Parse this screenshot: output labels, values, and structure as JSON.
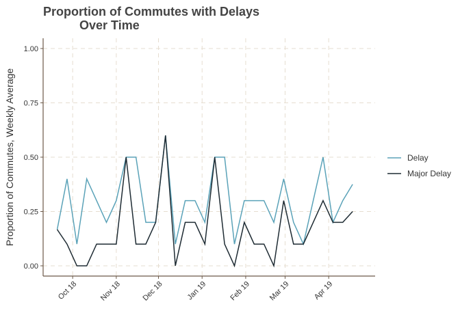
{
  "chart_data": {
    "type": "line",
    "title_lines": [
      "Proportion of Commutes with Delays",
      "Over Time"
    ],
    "xlabel": "",
    "ylabel": "Proportion of Commutes, Weekly Average",
    "ylim": [
      0,
      1
    ],
    "y_ticks": [
      0,
      0.25,
      0.5,
      0.75,
      1
    ],
    "y_tick_labels": [
      "0.00",
      "0.25",
      "0.50",
      "0.75",
      "1.00"
    ],
    "xlim": [
      "2018-09-10",
      "2019-05-04"
    ],
    "x_ticks": [
      "2018-10-01",
      "2018-11-01",
      "2018-12-01",
      "2019-01-01",
      "2019-02-01",
      "2019-03-01",
      "2019-04-01"
    ],
    "x_tick_labels": [
      "Oct 18",
      "Nov 18",
      "Dec 18",
      "Jan 19",
      "Feb 19",
      "Mar 19",
      "Apr 19"
    ],
    "grid": true,
    "legend_position": "right",
    "x": [
      "2018-09-20",
      "2018-09-27",
      "2018-10-04",
      "2018-10-11",
      "2018-10-18",
      "2018-10-25",
      "2018-11-01",
      "2018-11-08",
      "2018-11-15",
      "2018-11-22",
      "2018-11-29",
      "2018-12-06",
      "2018-12-13",
      "2018-12-20",
      "2018-12-27",
      "2019-01-03",
      "2019-01-10",
      "2019-01-17",
      "2019-01-24",
      "2019-01-31",
      "2019-02-07",
      "2019-02-14",
      "2019-02-21",
      "2019-02-28",
      "2019-03-07",
      "2019-03-14",
      "2019-03-21",
      "2019-03-28",
      "2019-04-04",
      "2019-04-11",
      "2019-04-18"
    ],
    "series": [
      {
        "name": "Delay",
        "color": "#5aa2b8",
        "values": [
          0.167,
          0.4,
          0.1,
          0.4,
          0.3,
          0.2,
          0.3,
          0.5,
          0.5,
          0.2,
          0.2,
          0.6,
          0.1,
          0.3,
          0.3,
          0.2,
          0.5,
          0.5,
          0.1,
          0.3,
          0.3,
          0.3,
          0.2,
          0.4,
          0.2,
          0.1,
          0.3,
          0.5,
          0.2,
          0.3,
          0.375
        ]
      },
      {
        "name": "Major Delay",
        "color": "#1e2b33",
        "values": [
          0.167,
          0.1,
          0.0,
          0.0,
          0.1,
          0.1,
          0.1,
          0.5,
          0.1,
          0.1,
          0.2,
          0.6,
          0.0,
          0.2,
          0.2,
          0.1,
          0.5,
          0.1,
          0.0,
          0.2,
          0.1,
          0.1,
          0.0,
          0.3,
          0.1,
          0.1,
          0.2,
          0.3,
          0.2,
          0.2,
          0.25
        ]
      }
    ]
  }
}
